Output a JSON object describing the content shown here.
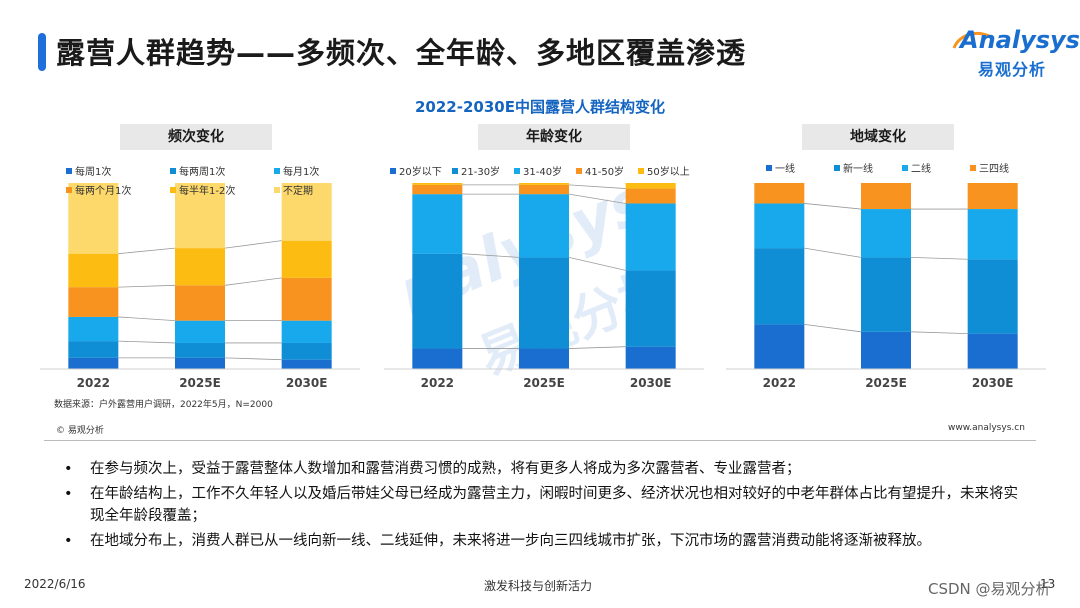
{
  "page": {
    "title": "露营人群趋势——多频次、全年龄、多地区覆盖渗透",
    "logo_en": "Analysys",
    "logo_zh": "易观分析"
  },
  "chart_title": "2022-2030E中国露营人群结构变化",
  "source": "数据来源：户外露营用户调研，2022年5月，N=2000",
  "copyright": "© 易观分析",
  "website": "www.analysys.cn",
  "bullets": [
    "在参与频次上，受益于露营整体人数增加和露营消费习惯的成熟，将有更多人将成为多次露营者、专业露营者；",
    "在年龄结构上，工作不久年轻人以及婚后带娃父母已经成为露营主力，闲暇时间更多、经济状况也相对较好的中老年群体占比有望提升，未来将实现全年龄段覆盖；",
    "在地域分布上，消费人群已从一线向新一线、二线延伸，未来将进一步向三四线城市扩张，下沉市场的露营消费动能将逐渐被释放。"
  ],
  "bullet_marker": "•",
  "footer": {
    "date": "2022/6/16",
    "slogan": "激发科技与创新活力",
    "page": "13",
    "csdn": "CSDN @易观分析"
  },
  "chart_data": [
    {
      "type": "bar",
      "stacked": true,
      "title": "频次变化",
      "categories": [
        "2022",
        "2025E",
        "2030E"
      ],
      "legend_position": "top",
      "series": [
        {
          "name": "每周1次",
          "color": "#1a6ecf",
          "values": [
            6,
            6,
            5
          ]
        },
        {
          "name": "每两周1次",
          "color": "#0f8ed6",
          "values": [
            9,
            8,
            9
          ]
        },
        {
          "name": "每月1次",
          "color": "#18a8ec",
          "values": [
            13,
            12,
            12
          ]
        },
        {
          "name": "每两个月1次",
          "color": "#f7931e",
          "values": [
            16,
            19,
            23
          ]
        },
        {
          "name": "每半年1-2次",
          "color": "#fcbc11",
          "values": [
            18,
            20,
            20
          ]
        },
        {
          "name": "不定期",
          "color": "#fdd86a",
          "values": [
            38,
            35,
            31
          ]
        }
      ]
    },
    {
      "type": "bar",
      "stacked": true,
      "title": "年龄变化",
      "categories": [
        "2022",
        "2025E",
        "2030E"
      ],
      "legend_position": "top",
      "series": [
        {
          "name": "20岁以下",
          "color": "#1a6ecf",
          "values": [
            11,
            11,
            12
          ]
        },
        {
          "name": "21-30岁",
          "color": "#0f8ed6",
          "values": [
            51,
            49,
            41
          ]
        },
        {
          "name": "31-40岁",
          "color": "#18a8ec",
          "values": [
            32,
            34,
            36
          ]
        },
        {
          "name": "41-50岁",
          "color": "#f7931e",
          "values": [
            5,
            5,
            8
          ]
        },
        {
          "name": "50岁以上",
          "color": "#fcbc11",
          "values": [
            1,
            1,
            3
          ]
        }
      ]
    },
    {
      "type": "bar",
      "stacked": true,
      "title": "地域变化",
      "categories": [
        "2022",
        "2025E",
        "2030E"
      ],
      "legend_position": "top",
      "series": [
        {
          "name": "一线",
          "color": "#1a6ecf",
          "values": [
            24,
            20,
            19
          ]
        },
        {
          "name": "新一线",
          "color": "#0f8ed6",
          "values": [
            41,
            40,
            40
          ]
        },
        {
          "name": "二线",
          "color": "#18a8ec",
          "values": [
            24,
            26,
            27
          ]
        },
        {
          "name": "三四线",
          "color": "#f7931e",
          "values": [
            11,
            14,
            14
          ]
        }
      ]
    }
  ]
}
